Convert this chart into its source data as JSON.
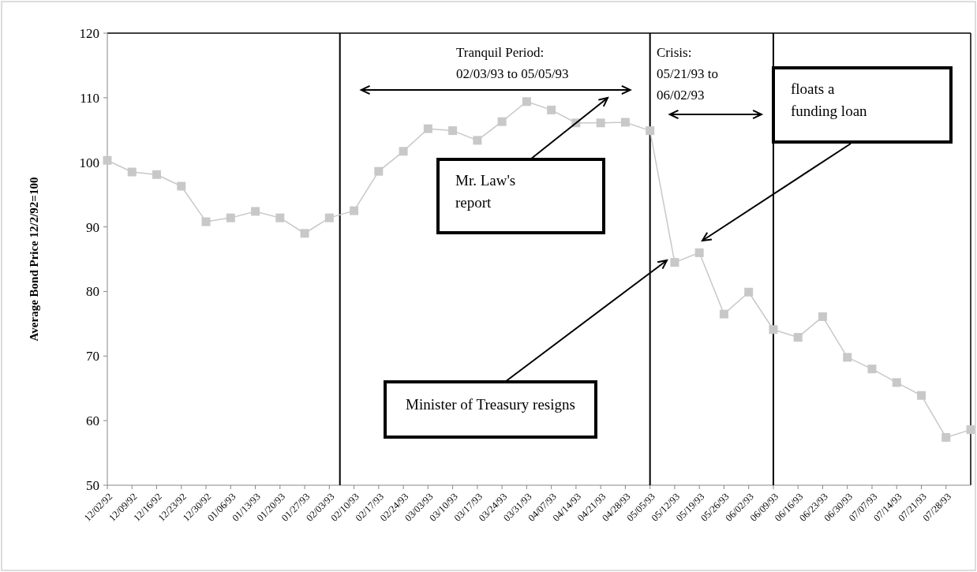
{
  "chart_data": {
    "type": "line",
    "ylabel": "Average Bond Price 12/2/92=100",
    "x": [
      "1992-12-02",
      "1992-12-09",
      "1992-12-16",
      "1992-12-23",
      "1992-12-30",
      "1993-01-06",
      "1993-01-13",
      "1993-01-20",
      "1993-01-27",
      "1993-02-03",
      "1993-02-10",
      "1993-02-17",
      "1993-02-24",
      "1993-03-03",
      "1993-03-10",
      "1993-03-17",
      "1993-03-24",
      "1993-03-31",
      "1993-04-07",
      "1993-04-14",
      "1993-04-21",
      "1993-04-28",
      "1993-05-05",
      "1993-05-12",
      "1993-05-19",
      "1993-05-26",
      "1993-06-02",
      "1993-06-09",
      "1993-06-16",
      "1993-06-23",
      "1993-06-30",
      "1993-07-07",
      "1993-07-14",
      "1993-07-21",
      "1993-07-28",
      "1993-08-04"
    ],
    "series": [
      {
        "color": "#c8c8c8",
        "values": [
          100.3,
          98.5,
          98.1,
          96.3,
          90.8,
          91.4,
          92.4,
          91.4,
          89.0,
          91.4,
          92.5,
          98.6,
          101.7,
          105.2,
          104.9,
          103.4,
          106.3,
          109.4,
          108.1,
          106.1,
          106.1,
          106.2,
          104.9,
          84.5,
          86.0,
          76.5,
          79.9,
          74.1,
          72.9,
          76.1,
          69.8,
          68.0,
          65.9,
          63.9,
          57.4,
          58.6
        ]
      }
    ],
    "marker": "square",
    "xlim": [
      "1992-12-02",
      "1993-08-04"
    ],
    "xticks": [
      {
        "value": "1992-12-02",
        "label": "12/02/92"
      },
      {
        "value": "1992-12-09",
        "label": "12/09/92"
      },
      {
        "value": "1992-12-16",
        "label": "12/16/92"
      },
      {
        "value": "1992-12-23",
        "label": "12/23/92"
      },
      {
        "value": "1992-12-30",
        "label": "12/30/92"
      },
      {
        "value": "1993-01-06",
        "label": "01/06/93"
      },
      {
        "value": "1993-01-13",
        "label": "01/13/93"
      },
      {
        "value": "1993-01-20",
        "label": "01/20/93"
      },
      {
        "value": "1993-01-27",
        "label": "01/27/93"
      },
      {
        "value": "1993-02-03",
        "label": "02/03/93"
      },
      {
        "value": "1993-02-10",
        "label": "02/10/93"
      },
      {
        "value": "1993-02-17",
        "label": "02/17/93"
      },
      {
        "value": "1993-02-24",
        "label": "02/24/93"
      },
      {
        "value": "1993-03-03",
        "label": "03/03/93"
      },
      {
        "value": "1993-03-10",
        "label": "03/10/93"
      },
      {
        "value": "1993-03-17",
        "label": "03/17/93"
      },
      {
        "value": "1993-03-24",
        "label": "03/24/93"
      },
      {
        "value": "1993-03-31",
        "label": "03/31/93"
      },
      {
        "value": "1993-04-07",
        "label": "04/07/93"
      },
      {
        "value": "1993-04-14",
        "label": "04/14/93"
      },
      {
        "value": "1993-04-21",
        "label": "04/21/93"
      },
      {
        "value": "1993-04-28",
        "label": "04/28/93"
      },
      {
        "value": "1993-05-05",
        "label": "05/05/93"
      },
      {
        "value": "1993-05-12",
        "label": "05/12/93"
      },
      {
        "value": "1993-05-19",
        "label": "05/19/93"
      },
      {
        "value": "1993-05-26",
        "label": "05/26/93"
      },
      {
        "value": "1993-06-02",
        "label": "06/02/93"
      },
      {
        "value": "1993-06-09",
        "label": "06/09/93"
      },
      {
        "value": "1993-06-16",
        "label": "06/16/93"
      },
      {
        "value": "1993-06-23",
        "label": "06/23/93"
      },
      {
        "value": "1993-06-30",
        "label": "06/30/93"
      },
      {
        "value": "1993-07-07",
        "label": "07/07/93"
      },
      {
        "value": "1993-07-14",
        "label": "07/14/93"
      },
      {
        "value": "1993-07-21",
        "label": "07/21/93"
      },
      {
        "value": "1993-07-28",
        "label": "07/28/93"
      }
    ],
    "ylim": [
      50,
      120
    ],
    "yticks": [
      50,
      60,
      70,
      80,
      90,
      100,
      110,
      120
    ],
    "ref_lines": [
      {
        "axis": "x",
        "value": "1993-02-06",
        "color": "#000000"
      },
      {
        "axis": "x",
        "value": "1993-05-05",
        "color": "#000000"
      },
      {
        "axis": "x",
        "value": "1993-06-09",
        "color": "#000000"
      }
    ],
    "annotations": [
      "Tranquil Period:\n02/03/93 to 05/05/93",
      "Crisis:\n05/21/93 to\n06/02/93",
      "Mr. Law's\nreport",
      "Minister of Treasury resigns",
      "floats a\nfunding loan"
    ]
  }
}
